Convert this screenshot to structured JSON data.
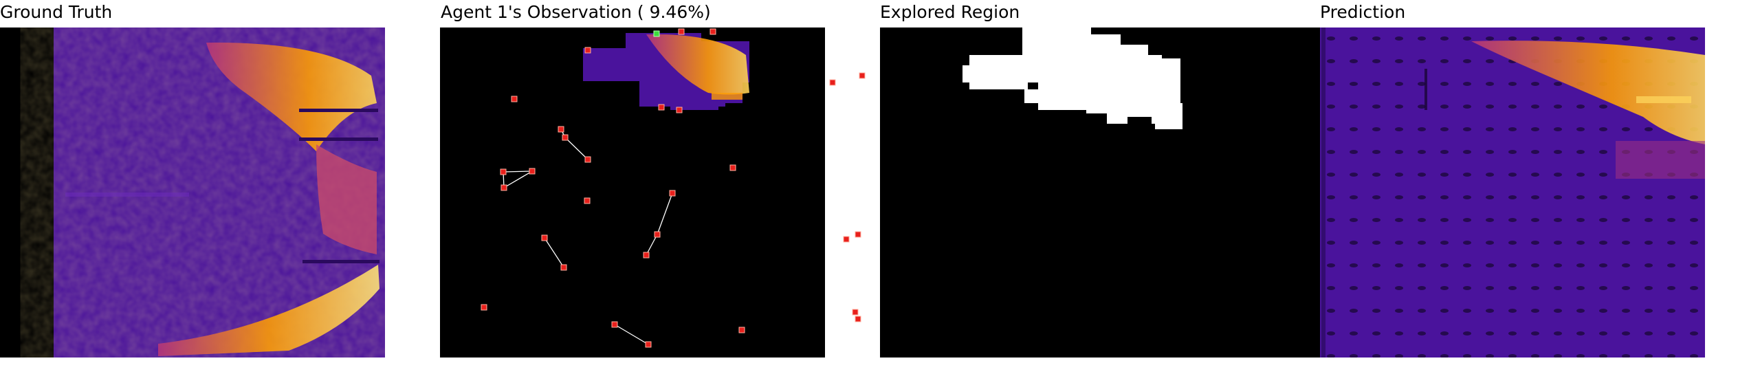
{
  "panels": {
    "ground_truth": {
      "title": "Ground Truth"
    },
    "observation": {
      "title": "Agent 1's Observation ( 9.46%)"
    },
    "explored": {
      "title": "Explored Region"
    },
    "prediction": {
      "title": "Prediction"
    }
  },
  "colors": {
    "background": "#000000",
    "heat_low": "#3b0f70",
    "heat_mid": "#b5367a",
    "heat_high": "#fcfdbf",
    "heat_hot": "#fb9b06",
    "agent_marker": "#e8201c",
    "agent_current": "#3ddc3d",
    "explored": "#ffffff",
    "trajectory": "#ffffff"
  }
}
